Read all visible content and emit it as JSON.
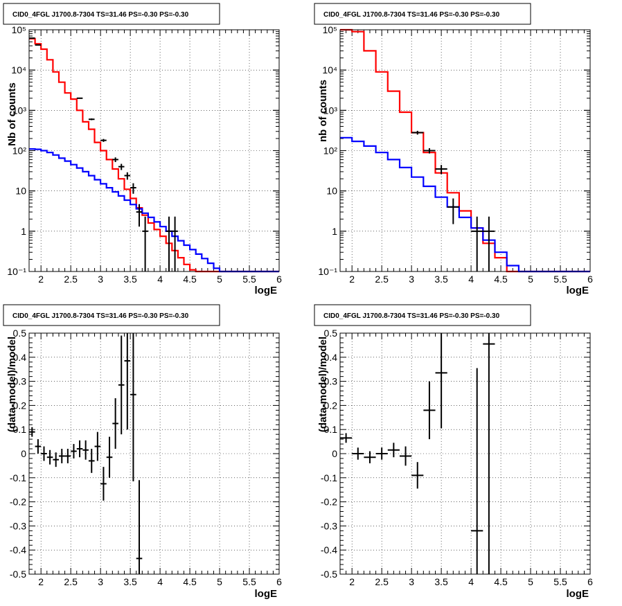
{
  "chart_data": [
    {
      "type": "line",
      "title": "CID0_4FGL J1700.8-7304 TS=31.46 PS=-0.30 PS=-0.30",
      "xlabel": "logE",
      "ylabel": "Nb of counts",
      "xlim": [
        1.8,
        6
      ],
      "ylim": [
        0.1,
        100000
      ],
      "log_y": true,
      "grid": true,
      "x_ticks": [
        "2",
        "2.5",
        "3",
        "3.5",
        "4",
        "4.5",
        "5",
        "5.5",
        "6"
      ],
      "y_ticks": [
        "10⁻¹",
        "1",
        "10",
        "10²",
        "10³",
        "10⁴",
        "10⁵"
      ],
      "bin_edges": [
        1.8,
        1.9,
        2.0,
        2.1,
        2.2,
        2.3,
        2.4,
        2.5,
        2.6,
        2.7,
        2.8,
        2.9,
        3.0,
        3.1,
        3.2,
        3.3,
        3.4,
        3.5,
        3.6,
        3.7,
        3.8,
        3.9,
        4.0,
        4.1,
        4.2,
        4.3,
        4.4,
        4.5,
        4.6,
        4.7,
        4.8,
        4.9,
        5.0,
        5.1,
        5.2,
        5.3,
        5.4,
        5.5,
        5.6,
        5.7,
        5.8,
        5.9,
        6.0
      ],
      "series": [
        {
          "color": "#ff0000",
          "values": [
            60000,
            45000,
            33000,
            18000,
            9000,
            5000,
            2700,
            1900,
            1000,
            520,
            340,
            160,
            100,
            60,
            35,
            20,
            11,
            6.5,
            3.8,
            2.5,
            1.6,
            1.1,
            0.75,
            0.5,
            0.33,
            0.22,
            0.15,
            0.11,
            0.1,
            0.1,
            0.1,
            0.1,
            0.1,
            0.1,
            0.1,
            0.1,
            0.1,
            0.1,
            0.1,
            0.1,
            0.1,
            0.1
          ]
        },
        {
          "color": "#0000ff",
          "values": [
            110,
            108,
            100,
            90,
            78,
            65,
            55,
            45,
            37,
            30,
            24,
            19,
            15,
            12,
            9.5,
            7.5,
            5.9,
            4.6,
            3.6,
            2.8,
            2.2,
            1.7,
            1.3,
            1.0,
            0.75,
            0.58,
            0.45,
            0.35,
            0.27,
            0.21,
            0.16,
            0.12,
            0.1,
            0.1,
            0.1,
            0.1,
            0.1,
            0.1,
            0.1,
            0.1,
            0.1,
            0.1
          ]
        }
      ],
      "points": [
        {
          "x": 1.85,
          "y": 62000,
          "xerr": 0.05,
          "ylo": 61000,
          "yhi": 63000
        },
        {
          "x": 1.95,
          "y": 42000,
          "xerr": 0.05,
          "ylo": 41000,
          "yhi": 43000
        },
        {
          "x": 2.65,
          "y": 2000,
          "xerr": 0.05,
          "ylo": 1950,
          "yhi": 2050
        },
        {
          "x": 2.85,
          "y": 600,
          "xerr": 0.05,
          "ylo": 570,
          "yhi": 630
        },
        {
          "x": 3.05,
          "y": 180,
          "xerr": 0.05,
          "ylo": 165,
          "yhi": 195
        },
        {
          "x": 3.25,
          "y": 60,
          "xerr": 0.05,
          "ylo": 52,
          "yhi": 68
        },
        {
          "x": 3.35,
          "y": 40,
          "xerr": 0.05,
          "ylo": 33,
          "yhi": 47
        },
        {
          "x": 3.45,
          "y": 24,
          "xerr": 0.05,
          "ylo": 19,
          "yhi": 29
        },
        {
          "x": 3.55,
          "y": 12,
          "xerr": 0.05,
          "ylo": 8.5,
          "yhi": 15.5
        },
        {
          "x": 3.65,
          "y": 3,
          "xerr": 0.05,
          "ylo": 1.3,
          "yhi": 4.7
        },
        {
          "x": 3.75,
          "y": 1,
          "xerr": 0.05,
          "ylo": 0.1,
          "yhi": 2.3
        },
        {
          "x": 4.15,
          "y": 1,
          "xerr": 0.05,
          "ylo": 0.1,
          "yhi": 2.3
        },
        {
          "x": 4.25,
          "y": 1,
          "xerr": 0.05,
          "ylo": 0.1,
          "yhi": 2.3
        }
      ]
    },
    {
      "type": "line",
      "title": "CID0_4FGL J1700.8-7304 TS=31.46 PS=-0.30 PS=-0.30",
      "xlabel": "logE",
      "ylabel": "nb of counts",
      "xlim": [
        1.8,
        6
      ],
      "ylim": [
        0.1,
        100000
      ],
      "log_y": true,
      "grid": true,
      "x_ticks": [
        "2",
        "2.5",
        "3",
        "3.5",
        "4",
        "4.5",
        "5",
        "5.5",
        "6"
      ],
      "y_ticks": [
        "10⁻¹",
        "1",
        "10",
        "10²",
        "10³",
        "10⁴",
        "10⁵"
      ],
      "bin_edges": [
        1.8,
        2.0,
        2.2,
        2.4,
        2.6,
        2.8,
        3.0,
        3.2,
        3.4,
        3.6,
        3.8,
        4.0,
        4.2,
        4.4,
        4.6,
        4.8,
        5.0,
        5.2,
        5.4,
        5.6,
        5.8,
        6.0
      ],
      "series": [
        {
          "color": "#ff0000",
          "values": [
            100000,
            90000,
            30000,
            9000,
            3000,
            900,
            280,
            90,
            28,
            9,
            3.2,
            1.2,
            0.5,
            0.22,
            0.1,
            0.1,
            0.1,
            0.1,
            0.1,
            0.1,
            0.1
          ]
        },
        {
          "color": "#0000ff",
          "values": [
            210,
            170,
            130,
            90,
            60,
            38,
            22,
            13,
            7,
            4,
            2.2,
            1.2,
            0.6,
            0.3,
            0.14,
            0.1,
            0.1,
            0.1,
            0.1,
            0.1,
            0.1
          ]
        }
      ],
      "points": [
        {
          "x": 3.1,
          "y": 280,
          "xerr": 0.1,
          "ylo": 250,
          "yhi": 310
        },
        {
          "x": 3.3,
          "y": 100,
          "xerr": 0.1,
          "ylo": 85,
          "yhi": 115
        },
        {
          "x": 3.5,
          "y": 35,
          "xerr": 0.1,
          "ylo": 26,
          "yhi": 44
        },
        {
          "x": 3.7,
          "y": 4,
          "xerr": 0.1,
          "ylo": 1.5,
          "yhi": 6.5
        },
        {
          "x": 4.1,
          "y": 1,
          "xerr": 0.1,
          "ylo": 0.1,
          "yhi": 2.3
        },
        {
          "x": 4.3,
          "y": 1,
          "xerr": 0.1,
          "ylo": 0.1,
          "yhi": 2.3
        }
      ]
    },
    {
      "type": "scatter",
      "title": "CID0_4FGL J1700.8-7304 TS=31.46 PS=-0.30 PS=-0.30",
      "xlabel": "logE",
      "ylabel": "(data-model)/model",
      "xlim": [
        1.8,
        6
      ],
      "ylim": [
        -0.5,
        0.5
      ],
      "grid": true,
      "x_ticks": [
        "2",
        "2.5",
        "3",
        "3.5",
        "4",
        "4.5",
        "5",
        "5.5",
        "6"
      ],
      "y_ticks": [
        "-0.5",
        "-0.4",
        "-0.3",
        "-0.2",
        "-0.1",
        "0",
        "0.1",
        "0.2",
        "0.3",
        "0.4",
        "0.5"
      ],
      "points": [
        {
          "x": 1.85,
          "y": 0.09,
          "xerr": 0.05,
          "ylo": 0.07,
          "yhi": 0.11
        },
        {
          "x": 1.95,
          "y": 0.03,
          "xerr": 0.05,
          "ylo": 0.0,
          "yhi": 0.06
        },
        {
          "x": 2.05,
          "y": 0.0,
          "xerr": 0.05,
          "ylo": -0.03,
          "yhi": 0.03
        },
        {
          "x": 2.15,
          "y": -0.015,
          "xerr": 0.05,
          "ylo": -0.045,
          "yhi": 0.015
        },
        {
          "x": 2.25,
          "y": -0.025,
          "xerr": 0.05,
          "ylo": -0.055,
          "yhi": 0.005
        },
        {
          "x": 2.35,
          "y": -0.01,
          "xerr": 0.05,
          "ylo": -0.04,
          "yhi": 0.02
        },
        {
          "x": 2.45,
          "y": -0.01,
          "xerr": 0.05,
          "ylo": -0.04,
          "yhi": 0.02
        },
        {
          "x": 2.55,
          "y": 0.01,
          "xerr": 0.05,
          "ylo": -0.02,
          "yhi": 0.04
        },
        {
          "x": 2.65,
          "y": 0.02,
          "xerr": 0.05,
          "ylo": -0.015,
          "yhi": 0.055
        },
        {
          "x": 2.75,
          "y": 0.015,
          "xerr": 0.05,
          "ylo": -0.025,
          "yhi": 0.055
        },
        {
          "x": 2.85,
          "y": -0.03,
          "xerr": 0.05,
          "ylo": -0.08,
          "yhi": 0.02
        },
        {
          "x": 2.95,
          "y": 0.03,
          "xerr": 0.05,
          "ylo": -0.03,
          "yhi": 0.09
        },
        {
          "x": 3.05,
          "y": -0.125,
          "xerr": 0.05,
          "ylo": -0.195,
          "yhi": -0.055
        },
        {
          "x": 3.15,
          "y": -0.015,
          "xerr": 0.05,
          "ylo": -0.1,
          "yhi": 0.07
        },
        {
          "x": 3.25,
          "y": 0.125,
          "xerr": 0.05,
          "ylo": 0.02,
          "yhi": 0.23
        },
        {
          "x": 3.35,
          "y": 0.285,
          "xerr": 0.05,
          "ylo": 0.08,
          "yhi": 0.49
        },
        {
          "x": 3.45,
          "y": 0.385,
          "xerr": 0.05,
          "ylo": 0.1,
          "yhi": 0.5
        },
        {
          "x": 3.55,
          "y": 0.245,
          "xerr": 0.05,
          "ylo": -0.115,
          "yhi": 0.5
        },
        {
          "x": 3.65,
          "y": -0.435,
          "xerr": 0.05,
          "ylo": -0.5,
          "yhi": -0.11
        }
      ]
    },
    {
      "type": "scatter",
      "title": "CID0_4FGL J1700.8-7304 TS=31.46 PS=-0.30 PS=-0.30",
      "xlabel": "logE",
      "ylabel": "(data-model)/model",
      "xlim": [
        1.8,
        6
      ],
      "ylim": [
        -0.5,
        0.5
      ],
      "grid": true,
      "x_ticks": [
        "2",
        "2.5",
        "3",
        "3.5",
        "4",
        "4.5",
        "5",
        "5.5",
        "6"
      ],
      "y_ticks": [
        "-0.5",
        "-0.4",
        "-0.3",
        "-0.2",
        "-0.1",
        "0",
        "0.1",
        "0.2",
        "0.3",
        "0.4",
        "0.5"
      ],
      "points": [
        {
          "x": 1.9,
          "y": 0.065,
          "xerr": 0.1,
          "ylo": 0.045,
          "yhi": 0.085
        },
        {
          "x": 2.1,
          "y": 0.0,
          "xerr": 0.1,
          "ylo": -0.025,
          "yhi": 0.025
        },
        {
          "x": 2.3,
          "y": -0.015,
          "xerr": 0.1,
          "ylo": -0.04,
          "yhi": 0.01
        },
        {
          "x": 2.5,
          "y": 0.0,
          "xerr": 0.1,
          "ylo": -0.025,
          "yhi": 0.025
        },
        {
          "x": 2.7,
          "y": 0.015,
          "xerr": 0.1,
          "ylo": -0.015,
          "yhi": 0.045
        },
        {
          "x": 2.9,
          "y": -0.01,
          "xerr": 0.1,
          "ylo": -0.05,
          "yhi": 0.03
        },
        {
          "x": 3.1,
          "y": -0.09,
          "xerr": 0.1,
          "ylo": -0.145,
          "yhi": -0.035
        },
        {
          "x": 3.3,
          "y": 0.18,
          "xerr": 0.1,
          "ylo": 0.06,
          "yhi": 0.3
        },
        {
          "x": 3.5,
          "y": 0.335,
          "xerr": 0.1,
          "ylo": 0.105,
          "yhi": 0.5
        },
        {
          "x": 4.1,
          "y": -0.32,
          "xerr": 0.1,
          "ylo": -0.5,
          "yhi": 0.355
        },
        {
          "x": 4.3,
          "y": 0.455,
          "xerr": 0.1,
          "ylo": -0.5,
          "yhi": 0.5
        }
      ]
    }
  ]
}
